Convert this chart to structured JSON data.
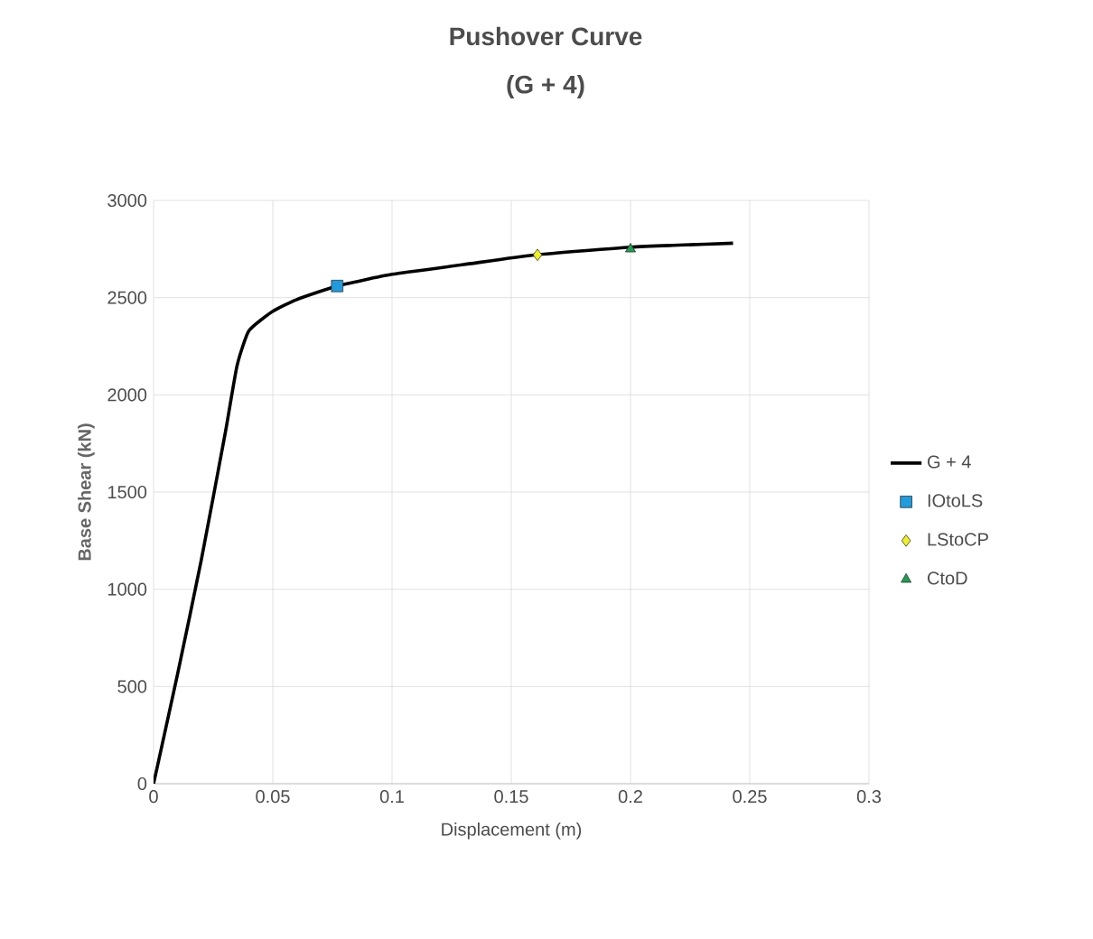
{
  "chart_data": {
    "type": "line",
    "title": "Pushover Curve",
    "subtitle": "(G + 4)",
    "xlabel": "Displacement (m)",
    "ylabel": "Base Shear (kN)",
    "xlim": [
      0,
      0.3
    ],
    "xticks": [
      0,
      0.05,
      0.1,
      0.15,
      0.2,
      0.25,
      0.3
    ],
    "ylim": [
      0,
      3000
    ],
    "yticks": [
      0,
      500,
      1000,
      1500,
      2000,
      2500,
      3000
    ],
    "grid": true,
    "legend": "right",
    "series": [
      {
        "name": "G + 4",
        "type": "line",
        "color": "#000000",
        "marker": "none",
        "x": [
          0,
          0.01,
          0.02,
          0.03,
          0.035,
          0.04,
          0.05,
          0.06,
          0.077,
          0.1,
          0.13,
          0.16,
          0.2,
          0.22,
          0.243
        ],
        "values": [
          0,
          560,
          1150,
          1800,
          2150,
          2330,
          2430,
          2490,
          2560,
          2620,
          2670,
          2720,
          2760,
          2770,
          2780
        ]
      },
      {
        "name": "IOtoLS",
        "type": "scatter",
        "color": "#1f9bde",
        "marker": "square",
        "x": [
          0.077
        ],
        "values": [
          2560
        ]
      },
      {
        "name": "LStoCP",
        "type": "scatter",
        "color": "#f0f020",
        "marker": "diamond",
        "x": [
          0.161
        ],
        "values": [
          2720
        ]
      },
      {
        "name": "CtoD",
        "type": "scatter",
        "color": "#1e9e50",
        "marker": "triangle",
        "x": [
          0.2
        ],
        "values": [
          2750
        ]
      }
    ]
  }
}
